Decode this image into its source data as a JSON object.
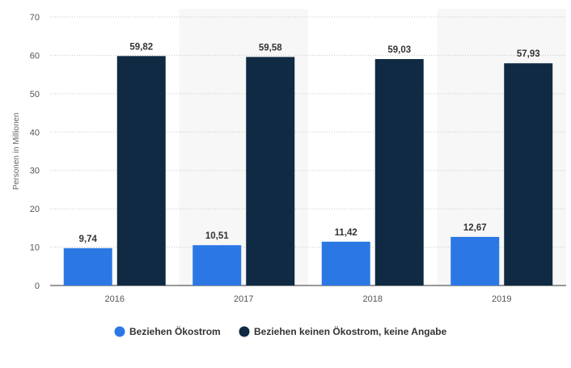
{
  "chart_data": {
    "type": "bar",
    "categories": [
      "2016",
      "2017",
      "2018",
      "2019"
    ],
    "series": [
      {
        "name": "Beziehen Ökostrom",
        "color": "#2b78e4",
        "values": [
          9.74,
          10.51,
          11.42,
          12.67
        ],
        "labels": [
          "9,74",
          "10,51",
          "11,42",
          "12,67"
        ]
      },
      {
        "name": "Beziehen keinen Ökostrom, keine Angabe",
        "color": "#0f2a42",
        "values": [
          59.82,
          59.58,
          59.03,
          57.93
        ],
        "labels": [
          "59,82",
          "59,58",
          "59,03",
          "57,93"
        ]
      }
    ],
    "ylabel": "Personen in Millionen",
    "ylim": [
      0,
      70
    ],
    "yticks": [
      0,
      10,
      20,
      30,
      40,
      50,
      60,
      70
    ],
    "grid": "dotted-horizontal",
    "legend": "bottom-center"
  }
}
